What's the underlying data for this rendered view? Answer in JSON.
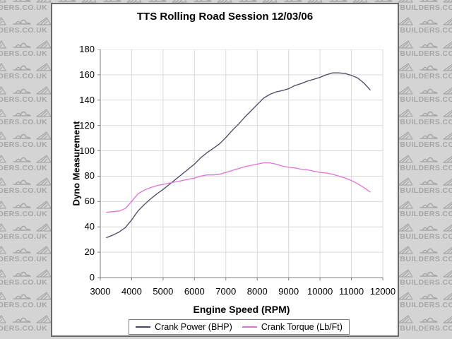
{
  "watermark": {
    "text": "LOCOSTBUILDERS.CO.UK",
    "bg_color": "#d4d4d4",
    "glyph_color": "#a6a6a6"
  },
  "chart": {
    "title": "TTS Rolling Road Session 12/03/06",
    "x_axis": {
      "title": "Engine Speed (RPM)",
      "tick_labels": [
        "3000",
        "4000",
        "5000",
        "6000",
        "7000",
        "8000",
        "9000",
        "10000",
        "11000",
        "12000"
      ]
    },
    "y_axis": {
      "title": "Dyno Measurement",
      "tick_labels": [
        "0",
        "20",
        "40",
        "60",
        "80",
        "100",
        "120",
        "140",
        "160",
        "180"
      ]
    },
    "legend": {
      "items": [
        {
          "label": "Crank Power (BHP)",
          "color": "#474760"
        },
        {
          "label": "Crank Torque (Lb/Ft)",
          "color": "#e26fd8"
        }
      ]
    },
    "colors": {
      "grid": "#d9d9d9",
      "axis": "#7f7f7f",
      "panel_border": "#6a6a6a"
    }
  },
  "chart_data": {
    "type": "line",
    "title": "TTS Rolling Road Session 12/03/06",
    "xlabel": "Engine Speed (RPM)",
    "ylabel": "Dyno Measurement",
    "xlim": [
      3000,
      12000
    ],
    "ylim": [
      0,
      180
    ],
    "x_tick_step": 1000,
    "y_tick_step": 20,
    "grid": true,
    "legend_position": "bottom",
    "x": [
      3200,
      3400,
      3600,
      3800,
      4000,
      4200,
      4400,
      4600,
      4800,
      5000,
      5200,
      5400,
      5600,
      5800,
      6000,
      6200,
      6400,
      6600,
      6800,
      7000,
      7200,
      7400,
      7600,
      7800,
      8000,
      8200,
      8400,
      8600,
      8800,
      9000,
      9200,
      9400,
      9600,
      9800,
      10000,
      10200,
      10400,
      10600,
      10800,
      11000,
      11200,
      11400,
      11600
    ],
    "series": [
      {
        "name": "Crank Power (BHP)",
        "color": "#474760",
        "values": [
          31.5,
          33.5,
          36,
          39.5,
          45.5,
          52.5,
          57.5,
          62,
          66,
          69.5,
          73.5,
          77.5,
          81.5,
          85.5,
          89.5,
          94.5,
          98.5,
          102,
          105.5,
          110.5,
          116,
          121,
          126.5,
          131.5,
          136.5,
          141.5,
          144.5,
          146.5,
          147.5,
          149,
          151.5,
          153,
          155,
          156.5,
          158,
          160,
          161.5,
          161.5,
          161,
          159.5,
          157.5,
          153.5,
          148
        ]
      },
      {
        "name": "Crank Torque (Lb/Ft)",
        "color": "#e26fd8",
        "values": [
          51.5,
          52,
          52.5,
          54.5,
          60,
          66,
          69,
          71,
          72.5,
          73.5,
          74.5,
          75.5,
          76.5,
          77.5,
          78.5,
          80,
          81,
          81,
          81.5,
          83,
          84.5,
          86,
          87.5,
          88.5,
          89.5,
          90.5,
          90.5,
          89.5,
          88,
          87,
          86.5,
          85.5,
          85,
          84,
          83,
          82.5,
          81.5,
          80,
          78.5,
          76.5,
          74,
          71,
          67.5
        ]
      }
    ]
  }
}
